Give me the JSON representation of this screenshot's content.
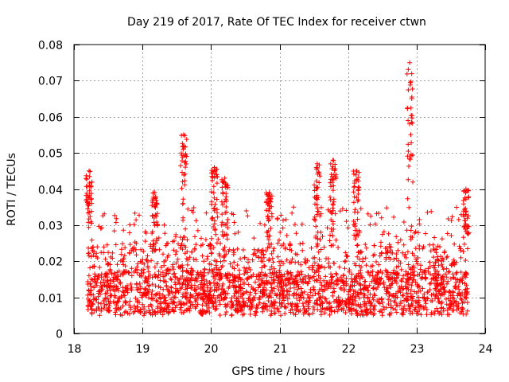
{
  "chart_data": {
    "type": "scatter",
    "title": "Day 219 of 2017, Rate Of TEC Index for receiver ctwn",
    "xlabel": "GPS time / hours",
    "ylabel": "ROTI / TECUs",
    "xlim": [
      18,
      24
    ],
    "ylim": [
      0,
      0.08
    ],
    "x_ticks": [
      18,
      19,
      20,
      21,
      22,
      23,
      24
    ],
    "x_tick_labels": [
      "18",
      "19",
      "20",
      "21",
      "22",
      "23",
      "24"
    ],
    "y_ticks": [
      0,
      0.01,
      0.02,
      0.03,
      0.04,
      0.05,
      0.06,
      0.07,
      0.08
    ],
    "y_tick_labels": [
      "0",
      "0.01",
      "0.02",
      "0.03",
      "0.04",
      "0.05",
      "0.06",
      "0.07",
      "0.08"
    ],
    "grid": true,
    "marker": "+",
    "color": "#ff0000",
    "series": [
      {
        "name": "ROTI",
        "x_range": [
          18.2,
          23.75
        ],
        "typical_range": [
          0.004,
          0.025
        ],
        "spikes": [
          {
            "x": 18.22,
            "peak": 0.045
          },
          {
            "x": 19.18,
            "peak": 0.039
          },
          {
            "x": 19.6,
            "peak": 0.055
          },
          {
            "x": 20.05,
            "peak": 0.046
          },
          {
            "x": 20.2,
            "peak": 0.043
          },
          {
            "x": 20.85,
            "peak": 0.039
          },
          {
            "x": 21.55,
            "peak": 0.047
          },
          {
            "x": 21.78,
            "peak": 0.048
          },
          {
            "x": 22.12,
            "peak": 0.045
          },
          {
            "x": 22.9,
            "peak": 0.075
          },
          {
            "x": 23.72,
            "peak": 0.04
          }
        ]
      }
    ]
  }
}
